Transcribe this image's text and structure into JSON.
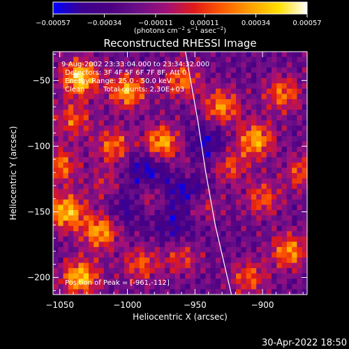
{
  "chart_data": {
    "type": "heatmap",
    "title": "Reconstructed RHESSI Image",
    "xlabel": "Heliocentric X (arcsec)",
    "ylabel": "Heliocentric Y (arcsec)",
    "xlim": [
      -1055,
      -867
    ],
    "ylim": [
      -213,
      -28
    ],
    "x_ticks": [
      -1050,
      -1000,
      -950,
      -900
    ],
    "y_ticks": [
      -50,
      -100,
      -150,
      -200
    ],
    "x_tick_labels": [
      "−1050",
      "−1000",
      "−950",
      "−900"
    ],
    "y_tick_labels": [
      "−50",
      "−100",
      "−150",
      "−200"
    ],
    "colorbar": {
      "range": [
        -0.00057,
        0.00057
      ],
      "ticks": [
        -0.00057,
        -0.00034,
        -0.00011,
        0.00011,
        0.00034,
        0.00057
      ],
      "tick_labels": [
        "−0.00057",
        "−0.00034",
        "−0.00011",
        "0.00011",
        "0.00034",
        "0.00057"
      ],
      "units_text": "(photons cm",
      "units_exp1": "−2",
      "units_mid1": " s",
      "units_exp2": "−1",
      "units_mid2": " asec",
      "units_exp3": "−2",
      "units_end": ")",
      "colors": [
        "#0000ff",
        "#3c0090",
        "#4b0082",
        "#6b0f88",
        "#a0107a",
        "#e01a18",
        "#ff5c00",
        "#ffa000",
        "#ffe000",
        "#ffffff"
      ]
    },
    "annotations": [
      "9-Aug-2002 23:33:04.000 to 23:34:32.000",
      "Detectors: 3F 4F 5F 6F 7F 8F, Att 0",
      "Energy Range: 25.0 - 50.0 keV",
      "Clean",
      "Total counts: 2.30E+03"
    ],
    "peak_label": "Position of Peak = [-961,-112]",
    "peak": [
      -961,
      -112
    ],
    "limb_curve": [
      [
        -957,
        -28
      ],
      [
        -948,
        -80
      ],
      [
        -942,
        -120
      ],
      [
        -935,
        -160
      ],
      [
        -926,
        -200
      ],
      [
        -923,
        -213
      ]
    ],
    "grid": false,
    "colorbar_position": "top"
  },
  "footer": {
    "timestamp": "30-Apr-2022 18:50"
  }
}
